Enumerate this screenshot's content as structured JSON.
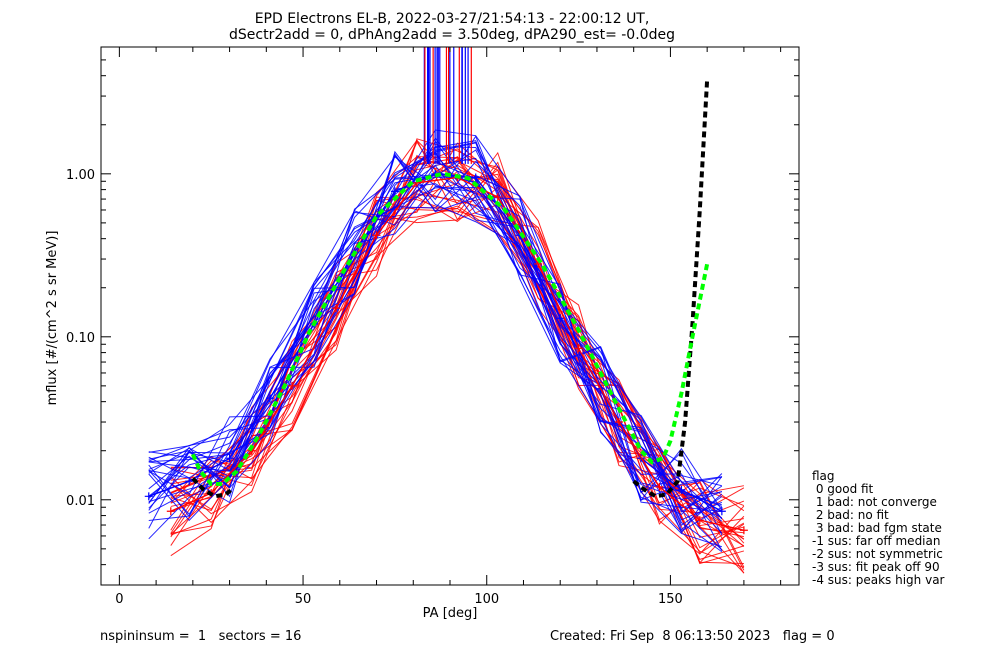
{
  "title_line1": "EPD Electrons EL-B, 2022-03-27/21:54:13 - 22:00:12 UT,",
  "title_line2": "dSectr2add = 0, dPhAng2add = 3.50deg, dPA290_est=  -0.0deg",
  "footer": {
    "left": "nspininsum =  1   sectors = 16",
    "right": "Created: Fri Sep  8 06:13:50 2023   flag = 0"
  },
  "legend": {
    "title": "flag",
    "items": [
      " 0 good fit",
      " 1 bad: not converge",
      " 2 bad: no fit",
      " 3 bad: bad fgm state",
      "-1 sus: far off median",
      "-2 sus: not symmetric",
      "-3 sus: fit peak off 90",
      "-4 sus: peaks high var"
    ]
  },
  "colors": {
    "blue": "#0000ff",
    "red": "#ff0000",
    "green": "#00ff00",
    "black": "#000000"
  },
  "chart_data": {
    "type": "line",
    "title": "EPD Electrons EL-B, 2022-03-27/21:54:13 - 22:00:12 UT,",
    "subtitle": "dSectr2add = 0, dPhAng2add = 3.50deg, dPA290_est=  -0.0deg",
    "xlabel": "PA [deg]",
    "ylabel": "mflux [#/(cm^2 s sr MeV)]",
    "xlim": [
      -5,
      185
    ],
    "ylim": [
      0.003,
      6
    ],
    "yscale": "log",
    "xticks": [
      0,
      50,
      100,
      150
    ],
    "xtick_labels": [
      "0",
      "50",
      "100",
      "150"
    ],
    "yticks": [
      0.01,
      0.1,
      1.0
    ],
    "ytick_labels": [
      "0.01",
      "0.10",
      "1.00"
    ],
    "grid": false,
    "series_note": "many overlapping spectra per spin; representative median values",
    "series": [
      {
        "color": "blue",
        "x": [
          8,
          19,
          30,
          41,
          53,
          64,
          75,
          86,
          97,
          109,
          120,
          131,
          142,
          153,
          164
        ],
        "values": [
          0.0105,
          0.013,
          0.018,
          0.042,
          0.12,
          0.33,
          0.78,
          1.0,
          0.95,
          0.42,
          0.13,
          0.048,
          0.018,
          0.0115,
          0.0085
        ]
      },
      {
        "color": "red",
        "x": [
          14,
          25,
          36,
          47,
          59,
          70,
          81,
          92,
          103,
          114,
          125,
          136,
          147,
          158,
          170
        ],
        "values": [
          0.0085,
          0.011,
          0.02,
          0.05,
          0.15,
          0.42,
          0.88,
          0.95,
          0.72,
          0.28,
          0.085,
          0.03,
          0.012,
          0.0075,
          0.0065
        ]
      },
      {
        "color": "green",
        "style": "dashed",
        "x": [
          20,
          22,
          25,
          28,
          32,
          38,
          45,
          52,
          60,
          70,
          80,
          88,
          95,
          105,
          115,
          125,
          135,
          142,
          145,
          148,
          150,
          153,
          156,
          160
        ],
        "values": [
          0.019,
          0.015,
          0.0125,
          0.0125,
          0.015,
          0.025,
          0.05,
          0.11,
          0.23,
          0.55,
          0.9,
          1.0,
          0.94,
          0.6,
          0.28,
          0.11,
          0.04,
          0.02,
          0.017,
          0.018,
          0.023,
          0.045,
          0.1,
          0.28
        ]
      },
      {
        "color": "black",
        "style": "dashed",
        "x": [
          20,
          23,
          26,
          29,
          31,
          140,
          143,
          146,
          149,
          152,
          154,
          156,
          158,
          160
        ],
        "values": [
          0.0135,
          0.0115,
          0.0105,
          0.0108,
          0.0118,
          0.013,
          0.0115,
          0.0105,
          0.0108,
          0.013,
          0.03,
          0.12,
          0.6,
          3.8
        ]
      }
    ]
  }
}
